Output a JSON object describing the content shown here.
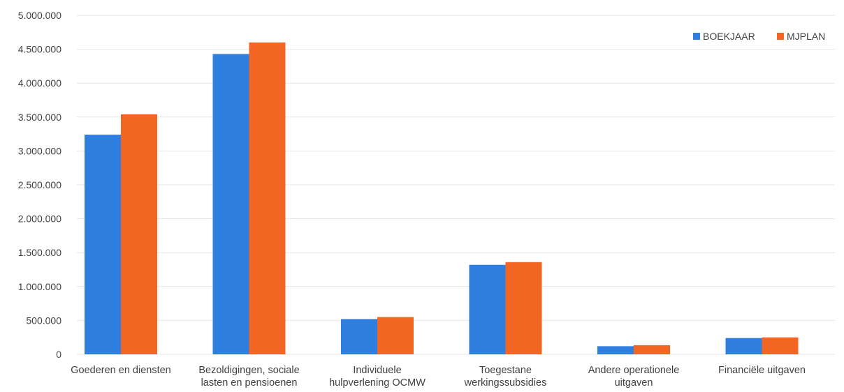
{
  "chart_data": {
    "type": "bar",
    "title": "",
    "xlabel": "",
    "ylabel": "",
    "categories": [
      [
        "Goederen en diensten"
      ],
      [
        "Bezoldigingen, sociale",
        "lasten en pensioenen"
      ],
      [
        "Individuele",
        "hulpverlening OCMW"
      ],
      [
        "Toegestane",
        "werkingssubsidies"
      ],
      [
        "Andere operationele",
        "uitgaven"
      ],
      [
        "Financiële uitgaven"
      ]
    ],
    "series": [
      {
        "name": "BOEKJAAR",
        "color": "#2e7fe0",
        "values": [
          3240000,
          4430000,
          520000,
          1320000,
          120000,
          240000
        ]
      },
      {
        "name": "MJPLAN",
        "color": "#f26522",
        "values": [
          3540000,
          4600000,
          550000,
          1360000,
          135000,
          250000
        ]
      }
    ],
    "ylim": [
      0,
      5000000
    ],
    "yticks": [
      0,
      500000,
      1000000,
      1500000,
      2000000,
      2500000,
      3000000,
      3500000,
      4000000,
      4500000,
      5000000
    ],
    "ytick_labels": [
      "0",
      "500.000",
      "1.000.000",
      "1.500.000",
      "2.000.000",
      "2.500.000",
      "3.000.000",
      "3.500.000",
      "4.000.000",
      "4.500.000",
      "5.000.000"
    ],
    "grid": true,
    "legend": "top-right"
  }
}
